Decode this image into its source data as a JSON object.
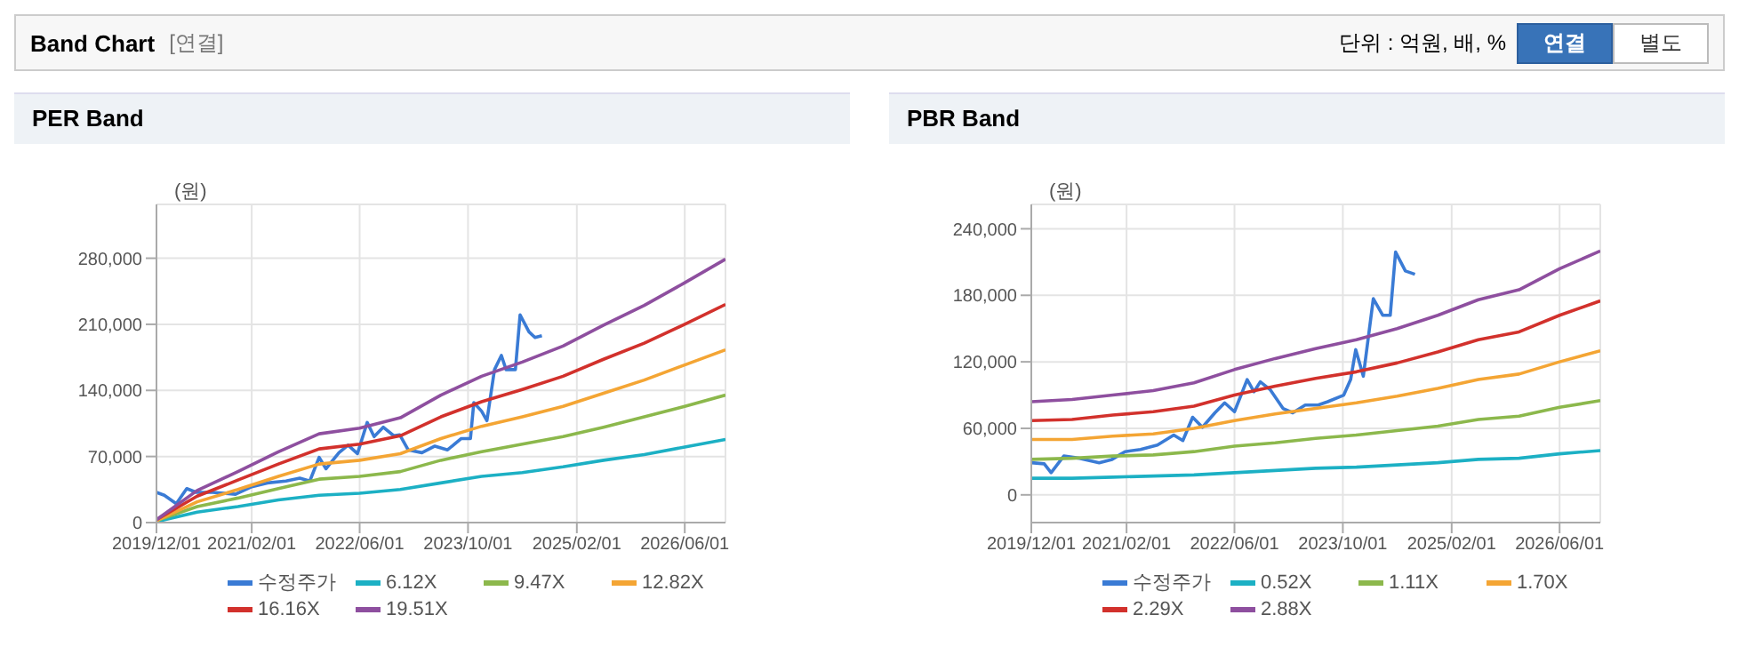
{
  "chart_data": [
    {
      "type": "line",
      "title": "PER Band",
      "ylabel": "(원)",
      "annotations": [
        "Band Chart",
        "[연결]",
        "단위 : 억원, 배, %",
        "연결",
        "별도"
      ],
      "x": [
        "2019-12-01",
        "2020-06-01",
        "2020-12-01",
        "2021-06-01",
        "2021-12-01",
        "2022-06-01",
        "2022-12-01",
        "2023-06-01",
        "2023-12-01",
        "2024-06-01",
        "2024-12-01",
        "2025-06-01",
        "2025-12-01",
        "2026-06-01",
        "2026-12-01"
      ],
      "xlim": [
        "2019-12-01",
        "2026-12-01"
      ],
      "xticks": [
        {
          "value": "2019-12-01",
          "label": "2019/12/01"
        },
        {
          "value": "2021-02-01",
          "label": "2021/02/01"
        },
        {
          "value": "2022-06-01",
          "label": "2022/06/01"
        },
        {
          "value": "2023-10-01",
          "label": "2023/10/01"
        },
        {
          "value": "2025-02-01",
          "label": "2025/02/01"
        },
        {
          "value": "2026-06-01",
          "label": "2026/06/01"
        }
      ],
      "ylim": [
        0,
        337000
      ],
      "yticks": [
        0,
        {
          "value": 70000,
          "label": "70,000"
        },
        {
          "value": 140000,
          "label": "140,000"
        },
        {
          "value": 210000,
          "label": "210,000"
        },
        {
          "value": 280000,
          "label": "280,000"
        }
      ],
      "grid": true,
      "legend": "bottom",
      "series": [
        {
          "name": "수정주가",
          "color": "#3a7bd5",
          "x": [
            "2019-12-01",
            "2020-01-05",
            "2020-02-28",
            "2020-04-15",
            "2020-05-28",
            "2020-08-10",
            "2020-11-20",
            "2021-02-01",
            "2021-04-12",
            "2021-07-05",
            "2021-09-05",
            "2021-10-20",
            "2021-12-01",
            "2022-01-01",
            "2022-02-28",
            "2022-04-10",
            "2022-05-22",
            "2022-07-05",
            "2022-08-05",
            "2022-09-15",
            "2022-11-01",
            "2022-11-28",
            "2023-01-05",
            "2023-03-08",
            "2023-05-05",
            "2023-07-01",
            "2023-09-01",
            "2023-10-12",
            "2023-10-27",
            "2023-12-01",
            "2023-12-25",
            "2024-01-28",
            "2024-02-28",
            "2024-03-20",
            "2024-05-01",
            "2024-05-22",
            "2024-07-01",
            "2024-07-28",
            "2024-08-28"
          ],
          "values": [
            32000,
            29000,
            20000,
            36000,
            32000,
            32000,
            30000,
            38000,
            42000,
            44000,
            47000,
            44000,
            69000,
            57000,
            74000,
            82000,
            73000,
            106000,
            91000,
            101000,
            92000,
            93000,
            77000,
            74000,
            81000,
            77000,
            89000,
            89000,
            127000,
            118000,
            108000,
            162000,
            177000,
            162000,
            162000,
            220000,
            202000,
            196000,
            198000
          ]
        },
        {
          "name": "6.12X",
          "color": "#1cb0c4",
          "values": [
            1000,
            11000,
            17000,
            24000,
            29000,
            31000,
            35000,
            42000,
            49000,
            53000,
            59000,
            66000,
            72000,
            80000,
            88000
          ]
        },
        {
          "name": "9.47X",
          "color": "#8cb84c",
          "values": [
            2000,
            17000,
            26000,
            36000,
            46000,
            49000,
            54000,
            66000,
            75000,
            83000,
            91000,
            101000,
            112000,
            123000,
            135000
          ]
        },
        {
          "name": "12.82X",
          "color": "#f4a534",
          "values": [
            2000,
            22000,
            35000,
            49000,
            62000,
            66000,
            73000,
            89000,
            102000,
            112000,
            123000,
            137000,
            151000,
            167000,
            183000
          ]
        },
        {
          "name": "16.16X",
          "color": "#d2312c",
          "values": [
            3000,
            28000,
            45000,
            62000,
            78000,
            83000,
            92000,
            112000,
            128000,
            141000,
            155000,
            173000,
            190000,
            210000,
            231000
          ]
        },
        {
          "name": "19.51X",
          "color": "#8e4f9f",
          "values": [
            3000,
            34000,
            54000,
            75000,
            94000,
            100000,
            111000,
            135000,
            155000,
            170000,
            187000,
            209000,
            230000,
            254000,
            279000
          ]
        }
      ]
    },
    {
      "type": "line",
      "title": "PBR Band",
      "ylabel": "(원)",
      "x": [
        "2019-12-01",
        "2020-06-01",
        "2020-12-01",
        "2021-06-01",
        "2021-12-01",
        "2022-06-01",
        "2022-12-01",
        "2023-06-01",
        "2023-12-01",
        "2024-06-01",
        "2024-12-01",
        "2025-06-01",
        "2025-12-01",
        "2026-06-01",
        "2026-12-01"
      ],
      "xlim": [
        "2019-12-01",
        "2026-12-01"
      ],
      "xticks": [
        {
          "value": "2019-12-01",
          "label": "2019/12/01"
        },
        {
          "value": "2021-02-01",
          "label": "2021/02/01"
        },
        {
          "value": "2022-06-01",
          "label": "2022/06/01"
        },
        {
          "value": "2023-10-01",
          "label": "2023/10/01"
        },
        {
          "value": "2025-02-01",
          "label": "2025/02/01"
        },
        {
          "value": "2026-06-01",
          "label": "2026/06/01"
        }
      ],
      "ylim": [
        -25000,
        262000
      ],
      "yticks": [
        0,
        {
          "value": 60000,
          "label": "60,000"
        },
        {
          "value": 120000,
          "label": "120,000"
        },
        {
          "value": 180000,
          "label": "180,000"
        },
        {
          "value": 240000,
          "label": "240,000"
        }
      ],
      "grid": true,
      "legend": "bottom",
      "series": [
        {
          "name": "수정주가",
          "color": "#3a7bd5",
          "x": [
            "2019-12-01",
            "2020-01-28",
            "2020-02-28",
            "2020-04-25",
            "2020-07-05",
            "2020-10-01",
            "2020-11-28",
            "2021-01-25",
            "2021-04-05",
            "2021-06-20",
            "2021-09-01",
            "2021-10-12",
            "2021-11-25",
            "2022-01-08",
            "2022-03-05",
            "2022-04-18",
            "2022-06-01",
            "2022-07-28",
            "2022-08-28",
            "2022-09-25",
            "2022-11-08",
            "2023-01-05",
            "2023-02-18",
            "2023-04-15",
            "2023-06-12",
            "2023-07-25",
            "2023-10-05",
            "2023-11-05",
            "2023-11-28",
            "2024-01-01",
            "2024-02-15",
            "2024-03-28",
            "2024-05-01",
            "2024-05-25",
            "2024-07-08",
            "2024-08-20"
          ],
          "values": [
            29000,
            28000,
            20000,
            35000,
            33000,
            29000,
            32000,
            39000,
            41000,
            45000,
            54000,
            49000,
            70000,
            61000,
            74000,
            83000,
            75000,
            104000,
            93000,
            102000,
            95000,
            78000,
            74000,
            81000,
            81000,
            84000,
            90000,
            104000,
            131000,
            107000,
            177000,
            162000,
            162000,
            219000,
            202000,
            199000
          ]
        },
        {
          "name": "0.52X",
          "color": "#1cb0c4",
          "values": [
            15000,
            15000,
            16000,
            17000,
            18000,
            20000,
            22000,
            24000,
            25000,
            27000,
            29000,
            32000,
            33000,
            37000,
            40000
          ]
        },
        {
          "name": "1.11X",
          "color": "#8cb84c",
          "values": [
            32000,
            33000,
            35000,
            36000,
            39000,
            44000,
            47000,
            51000,
            54000,
            58000,
            62000,
            68000,
            71000,
            79000,
            85000
          ]
        },
        {
          "name": "1.70X",
          "color": "#f4a534",
          "values": [
            50000,
            50000,
            53000,
            55000,
            60000,
            67000,
            73000,
            78000,
            83000,
            89000,
            96000,
            104000,
            109000,
            120000,
            130000
          ]
        },
        {
          "name": "2.29X",
          "color": "#d2312c",
          "values": [
            67000,
            68000,
            72000,
            75000,
            80000,
            90000,
            98000,
            105000,
            111000,
            119000,
            129000,
            140000,
            147000,
            162000,
            175000
          ]
        },
        {
          "name": "2.88X",
          "color": "#8e4f9f",
          "values": [
            84000,
            86000,
            90000,
            94000,
            101000,
            113000,
            123000,
            132000,
            140000,
            150000,
            162000,
            176000,
            185000,
            204000,
            220000
          ]
        }
      ]
    }
  ]
}
